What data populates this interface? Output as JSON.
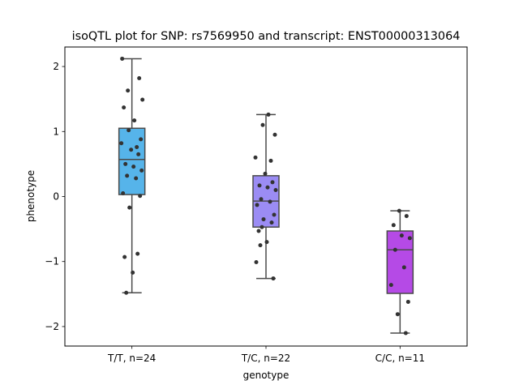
{
  "chart_data": {
    "type": "box",
    "title": "isoQTL plot for SNP: rs7569950 and transcript: ENST00000313064",
    "xlabel": "genotype",
    "ylabel": "phenotype",
    "ylim": [
      -2.3,
      2.3
    ],
    "yticks": [
      {
        "value": 2,
        "label": "2"
      },
      {
        "value": 1,
        "label": "1"
      },
      {
        "value": 0,
        "label": "0"
      },
      {
        "value": -1,
        "label": "−1"
      },
      {
        "value": -2,
        "label": "−2"
      }
    ],
    "grid": false,
    "legend": "none",
    "categories": [
      "T/T, n=24",
      "T/C, n=22",
      "C/C, n=11"
    ],
    "boxes": [
      {
        "category": "T/T, n=24",
        "color": "#56b4ea",
        "whisker_low": -1.48,
        "q1": 0.03,
        "median": 0.57,
        "q3": 1.05,
        "whisker_high": 2.12
      },
      {
        "category": "T/C, n=22",
        "color": "#9b8cf4",
        "whisker_low": -1.26,
        "q1": -0.47,
        "median": -0.07,
        "q3": 0.32,
        "whisker_high": 1.26
      },
      {
        "category": "C/C, n=11",
        "color": "#b54ae6",
        "whisker_low": -2.1,
        "q1": -1.49,
        "median": -0.82,
        "q3": -0.53,
        "whisker_high": -0.22
      }
    ],
    "points": [
      {
        "category": "T/T, n=24",
        "values": [
          2.12,
          1.82,
          1.63,
          1.49,
          1.37,
          1.17,
          1.02,
          0.88,
          0.82,
          0.76,
          0.72,
          0.65,
          0.5,
          0.46,
          0.4,
          0.32,
          0.28,
          0.05,
          0.01,
          -0.17,
          -0.88,
          -0.93,
          -1.17,
          -1.48
        ]
      },
      {
        "category": "T/C, n=22",
        "values": [
          1.26,
          1.1,
          0.95,
          0.6,
          0.55,
          0.35,
          0.22,
          0.17,
          0.14,
          0.1,
          -0.04,
          -0.08,
          -0.13,
          -0.28,
          -0.35,
          -0.4,
          -0.53,
          -0.7,
          -0.75,
          -1.01,
          -1.26,
          -0.47
        ]
      },
      {
        "category": "C/C, n=11",
        "values": [
          -0.22,
          -0.3,
          -0.44,
          -0.6,
          -0.64,
          -0.82,
          -1.09,
          -1.36,
          -1.62,
          -1.81,
          -2.1
        ]
      }
    ],
    "point_color": "#333333"
  }
}
